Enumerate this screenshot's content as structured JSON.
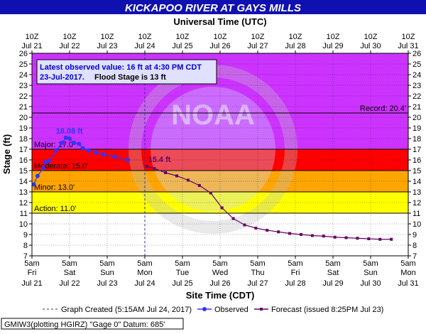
{
  "chart_data": {
    "type": "line",
    "title": "KICKAPOO RIVER AT GAYS MILLS",
    "top_axis_title": "Universal Time (UTC)",
    "xlabel": "Site Time (CDT)",
    "ylabel": "Stage (ft)",
    "ylim": [
      7,
      26
    ],
    "y_ticks": [
      7,
      8,
      9,
      10,
      11,
      12,
      13,
      14,
      15,
      16,
      17,
      18,
      19,
      20,
      21,
      22,
      23,
      24,
      25,
      26
    ],
    "x_days": [
      "Jul 21",
      "Jul 22",
      "Jul 23",
      "Jul 24",
      "Jul 25",
      "Jul 26",
      "Jul 27",
      "Jul 28",
      "Jul 29",
      "Jul 30",
      "Jul 31"
    ],
    "top_ticks": [
      {
        "time": "10Z",
        "day": "Jul 21"
      },
      {
        "time": "10Z",
        "day": "Jul 22"
      },
      {
        "time": "10Z",
        "day": "Jul 23"
      },
      {
        "time": "10Z",
        "day": "Jul 24"
      },
      {
        "time": "10Z",
        "day": "Jul 25"
      },
      {
        "time": "10Z",
        "day": "Jul 26"
      },
      {
        "time": "10Z",
        "day": "Jul 27"
      },
      {
        "time": "10Z",
        "day": "Jul 28"
      },
      {
        "time": "10Z",
        "day": "Jul 29"
      },
      {
        "time": "10Z",
        "day": "Jul 30"
      },
      {
        "time": "10Z",
        "day": "Jul 31"
      }
    ],
    "bottom_ticks": [
      {
        "time": "5am",
        "dow": "Fri",
        "day": "Jul 21"
      },
      {
        "time": "5am",
        "dow": "Sat",
        "day": "Jul 22"
      },
      {
        "time": "5am",
        "dow": "Sun",
        "day": "Jul 23"
      },
      {
        "time": "5am",
        "dow": "Mon",
        "day": "Jul 24"
      },
      {
        "time": "5am",
        "dow": "Tue",
        "day": "Jul 25"
      },
      {
        "time": "5am",
        "dow": "Wed",
        "day": "Jul 26"
      },
      {
        "time": "5am",
        "dow": "Thu",
        "day": "Jul 27"
      },
      {
        "time": "5am",
        "dow": "Fri",
        "day": "Jul 28"
      },
      {
        "time": "5am",
        "dow": "Sat",
        "day": "Jul 29"
      },
      {
        "time": "5am",
        "dow": "Sun",
        "day": "Jul 30"
      },
      {
        "time": "5am",
        "dow": "Mon",
        "day": "Jul 31"
      }
    ],
    "bands": [
      {
        "from": 7,
        "to": 11,
        "color": "#ffffff"
      },
      {
        "from": 11,
        "to": 13,
        "color": "#ffff00"
      },
      {
        "from": 13,
        "to": 15,
        "color": "#ffa500"
      },
      {
        "from": 15,
        "to": 17,
        "color": "#ff0000"
      },
      {
        "from": 17,
        "to": 26,
        "color": "#cc33ff"
      }
    ],
    "thresholds": [
      {
        "label": "Action: 11.0'",
        "value": 11.0
      },
      {
        "label": "Minor: 13.0'",
        "value": 13.0
      },
      {
        "label": "Moderate: 15.0'",
        "value": 15.0
      },
      {
        "label": "Major: 17.0'",
        "value": 17.0
      }
    ],
    "record": {
      "label": "Record: 20.4'",
      "value": 20.4
    },
    "observed_color": "#3333ff",
    "forecast_color": "#660066",
    "observed": {
      "x": [
        0.05,
        0.15,
        0.3,
        0.35,
        0.45,
        0.65,
        0.8,
        0.9,
        1.0,
        1.12,
        1.25,
        1.35,
        1.5,
        1.7,
        1.9,
        2.2,
        2.55
      ],
      "y": [
        13.7,
        14.5,
        15.2,
        15.8,
        15.9,
        16.9,
        17.6,
        18.08,
        18.0,
        17.6,
        17.5,
        17.1,
        16.9,
        16.7,
        16.5,
        16.3,
        16.0
      ]
    },
    "forecast": {
      "x": [
        3.05,
        3.25,
        3.55,
        3.85,
        4.15,
        4.45,
        4.75,
        5.05,
        5.35,
        5.65,
        5.95,
        6.25,
        6.55,
        6.85,
        7.15,
        7.45,
        7.75,
        8.05,
        8.35,
        8.65,
        8.95,
        9.25,
        9.55
      ],
      "y": [
        15.4,
        15.2,
        14.8,
        14.5,
        14.1,
        13.6,
        12.9,
        11.5,
        10.5,
        9.9,
        9.6,
        9.4,
        9.25,
        9.1,
        9.0,
        8.9,
        8.85,
        8.75,
        8.7,
        8.65,
        8.6,
        8.55,
        8.55
      ]
    },
    "graph_created_x": 3.0,
    "latest_box": {
      "line1": "Latest observed value: 16 ft at 4:30 PM CDT",
      "line2a": "23-Jul-2017.",
      "line2b": "Flood Stage is 13 ft"
    },
    "peak_observed_label": "18.08 ft",
    "first_forecast_label": "15.4 ft",
    "watermark_text": "NOAA",
    "legend": {
      "graph_created": "Graph Created (5:15AM Jul 24, 2017)",
      "observed": "Observed",
      "forecast": "Forecast (issued 8:25PM Jul 23)"
    },
    "footer": "GMIW3(plotting HGIRZ) \"Gage 0\" Datum: 685'"
  }
}
